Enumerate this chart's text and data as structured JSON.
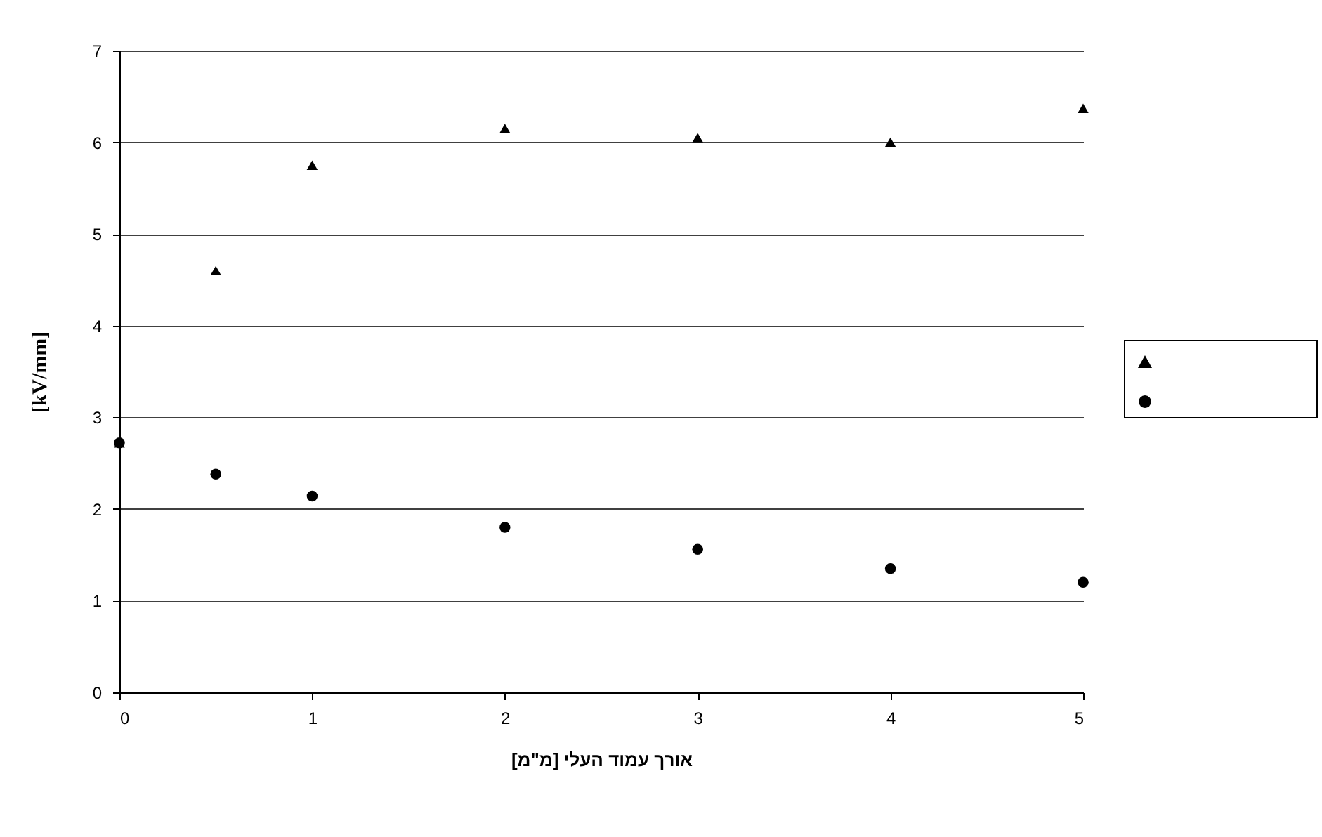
{
  "chart_data": {
    "type": "scatter",
    "xlabel": "אורך עמוד העלי [מ\"מ]",
    "ylabel": "[kV/mm]",
    "x": [
      0,
      0.5,
      1,
      2,
      3,
      4,
      5
    ],
    "series": [
      {
        "color": "#000000",
        "marker": "triangle",
        "values": [
          2.72,
          4.6,
          5.75,
          6.15,
          6.05,
          6.0,
          6.37
        ]
      },
      {
        "color": "#000000",
        "marker": "circle",
        "values": [
          2.72,
          2.38,
          2.14,
          1.8,
          1.56,
          1.35,
          1.2
        ]
      }
    ],
    "xlim": [
      0,
      5
    ],
    "xticks": [
      0,
      1,
      2,
      3,
      4,
      5
    ],
    "ylim": [
      0,
      7
    ],
    "yticks": [
      0,
      1,
      2,
      3,
      4,
      5,
      6,
      7
    ],
    "grid": "y"
  }
}
